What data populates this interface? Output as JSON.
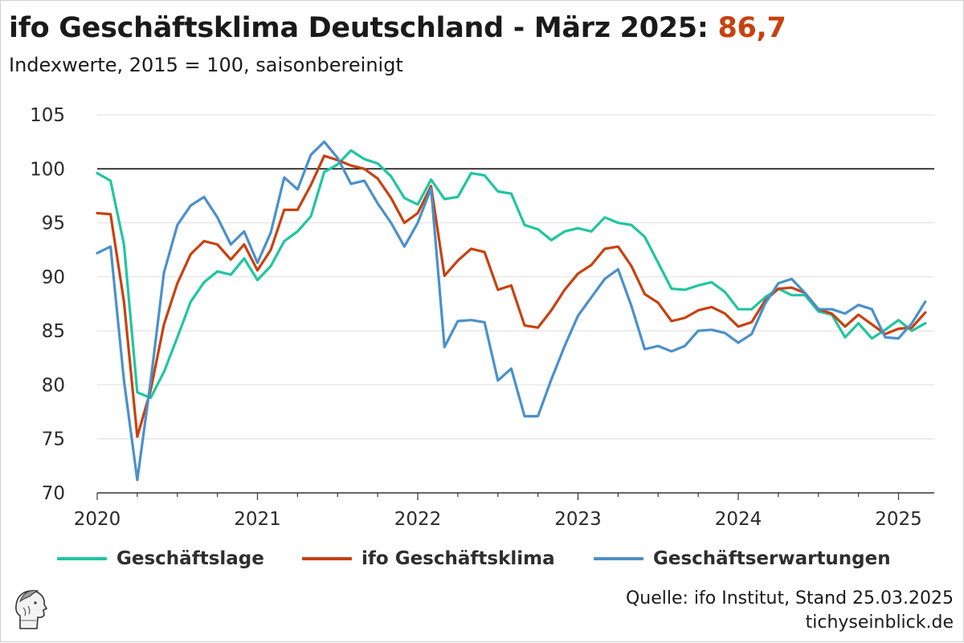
{
  "title": {
    "main": "ifo Geschäftsklima Deutschland - März 2025: ",
    "highlight": "86,7"
  },
  "subtitle": "Indexwerte, 2015 = 100, saisonbereinigt",
  "source": {
    "line1": "Quelle: ifo Institut, Stand 25.03.2025",
    "line2": "tichyseinblick.de"
  },
  "colors": {
    "geschaeftslage": "#1fc6a0",
    "klima": "#c8410f",
    "erwartungen": "#4a90cc",
    "highlight": "#c8410f"
  },
  "chart_data": {
    "type": "line",
    "x": [
      "2020-01",
      "2020-02",
      "2020-03",
      "2020-04",
      "2020-05",
      "2020-06",
      "2020-07",
      "2020-08",
      "2020-09",
      "2020-10",
      "2020-11",
      "2020-12",
      "2021-01",
      "2021-02",
      "2021-03",
      "2021-04",
      "2021-05",
      "2021-06",
      "2021-07",
      "2021-08",
      "2021-09",
      "2021-10",
      "2021-11",
      "2021-12",
      "2022-01",
      "2022-02",
      "2022-03",
      "2022-04",
      "2022-05",
      "2022-06",
      "2022-07",
      "2022-08",
      "2022-09",
      "2022-10",
      "2022-11",
      "2022-12",
      "2023-01",
      "2023-02",
      "2023-03",
      "2023-04",
      "2023-05",
      "2023-06",
      "2023-07",
      "2023-08",
      "2023-09",
      "2023-10",
      "2023-11",
      "2023-12",
      "2024-01",
      "2024-02",
      "2024-03",
      "2024-04",
      "2024-05",
      "2024-06",
      "2024-07",
      "2024-08",
      "2024-09",
      "2024-10",
      "2024-11",
      "2024-12",
      "2025-01",
      "2025-02",
      "2025-03"
    ],
    "x_ticks": [
      "2020",
      "2021",
      "2022",
      "2023",
      "2024",
      "2025"
    ],
    "ylim": [
      70,
      105
    ],
    "y_ticks": [
      70,
      75,
      80,
      85,
      90,
      95,
      100,
      105
    ],
    "reference_line": 100,
    "grid": "horizontal",
    "legend_position": "bottom",
    "series": [
      {
        "name": "Geschäftslage",
        "color": "#1fc6a0",
        "values": [
          99.6,
          98.9,
          93.0,
          79.3,
          78.8,
          81.2,
          84.4,
          87.7,
          89.5,
          90.5,
          90.2,
          91.7,
          89.7,
          91.0,
          93.3,
          94.2,
          95.6,
          99.7,
          100.4,
          101.7,
          100.9,
          100.5,
          99.3,
          97.3,
          96.7,
          99.0,
          97.2,
          97.4,
          99.6,
          99.4,
          97.9,
          97.7,
          94.8,
          94.4,
          93.4,
          94.2,
          94.5,
          94.2,
          95.5,
          95.0,
          94.8,
          93.7,
          91.3,
          88.9,
          88.8,
          89.2,
          89.5,
          88.6,
          87.0,
          87.0,
          88.1,
          88.9,
          88.3,
          88.3,
          86.8,
          86.5,
          84.4,
          85.7,
          84.3,
          85.1,
          86.0,
          85.0,
          85.7
        ]
      },
      {
        "name": "ifo Geschäftsklima",
        "color": "#c8410f",
        "values": [
          95.9,
          95.8,
          87.7,
          75.2,
          79.5,
          85.6,
          89.4,
          92.1,
          93.3,
          93.0,
          91.6,
          93.0,
          90.6,
          92.5,
          96.2,
          96.2,
          98.5,
          101.2,
          100.8,
          100.3,
          100.0,
          99.1,
          97.3,
          95.0,
          95.9,
          98.4,
          90.1,
          91.5,
          92.6,
          92.3,
          88.8,
          89.2,
          85.5,
          85.3,
          86.9,
          88.8,
          90.3,
          91.1,
          92.6,
          92.8,
          91.0,
          88.4,
          87.6,
          85.9,
          86.2,
          86.9,
          87.2,
          86.6,
          85.4,
          85.8,
          87.8,
          88.9,
          89.0,
          88.5,
          87.0,
          86.6,
          85.4,
          86.5,
          85.6,
          84.7,
          85.2,
          85.3,
          86.7
        ]
      },
      {
        "name": "Geschäftserwartungen",
        "color": "#4a90cc",
        "values": [
          92.2,
          92.8,
          80.4,
          71.2,
          80.3,
          90.4,
          94.8,
          96.6,
          97.4,
          95.5,
          93.0,
          94.2,
          91.3,
          94.1,
          99.2,
          98.1,
          101.3,
          102.5,
          101.0,
          98.6,
          98.9,
          96.8,
          95.0,
          92.8,
          95.0,
          98.2,
          83.5,
          85.9,
          86.0,
          85.8,
          80.4,
          81.5,
          77.1,
          77.1,
          80.5,
          83.6,
          86.4,
          88.1,
          89.8,
          90.7,
          87.3,
          83.3,
          83.6,
          83.1,
          83.6,
          85.0,
          85.1,
          84.8,
          83.9,
          84.7,
          87.5,
          89.4,
          89.8,
          88.5,
          87.0,
          87.0,
          86.6,
          87.4,
          87.0,
          84.4,
          84.3,
          85.7,
          87.7
        ]
      }
    ]
  }
}
